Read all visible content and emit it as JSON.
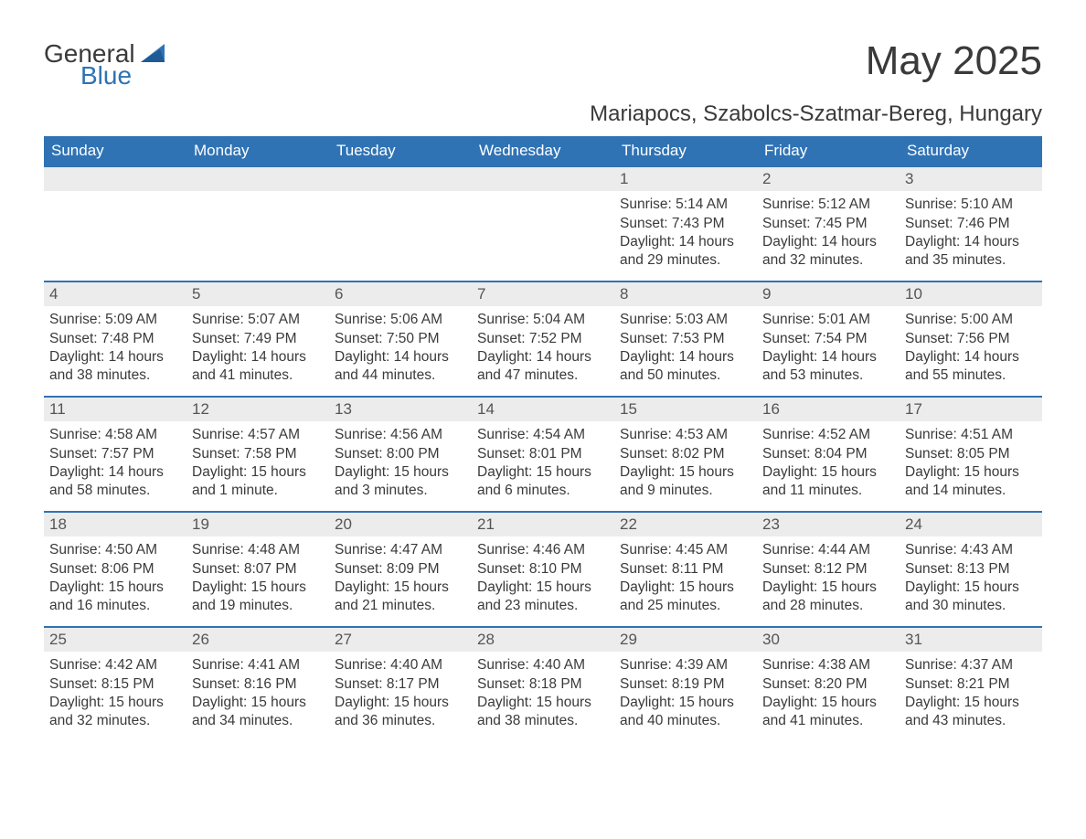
{
  "brand": {
    "word1": "General",
    "word2": "Blue"
  },
  "title": "May 2025",
  "location": "Mariapocs, Szabolcs-Szatmar-Bereg, Hungary",
  "colors": {
    "header_bg": "#2f73b5",
    "header_text": "#ffffff",
    "row_rule": "#2f73b5",
    "daybar_bg": "#ececec",
    "daybar_text": "#555555",
    "body_text": "#3a3a3a",
    "logo_blue": "#2f73b5",
    "page_bg": "#ffffff"
  },
  "layout": {
    "columns": 7,
    "rows": 5,
    "leading_blanks": 4
  },
  "weekdays": [
    "Sunday",
    "Monday",
    "Tuesday",
    "Wednesday",
    "Thursday",
    "Friday",
    "Saturday"
  ],
  "days": [
    {
      "n": 1,
      "sunrise": "5:14 AM",
      "sunset": "7:43 PM",
      "daylight": "14 hours and 29 minutes."
    },
    {
      "n": 2,
      "sunrise": "5:12 AM",
      "sunset": "7:45 PM",
      "daylight": "14 hours and 32 minutes."
    },
    {
      "n": 3,
      "sunrise": "5:10 AM",
      "sunset": "7:46 PM",
      "daylight": "14 hours and 35 minutes."
    },
    {
      "n": 4,
      "sunrise": "5:09 AM",
      "sunset": "7:48 PM",
      "daylight": "14 hours and 38 minutes."
    },
    {
      "n": 5,
      "sunrise": "5:07 AM",
      "sunset": "7:49 PM",
      "daylight": "14 hours and 41 minutes."
    },
    {
      "n": 6,
      "sunrise": "5:06 AM",
      "sunset": "7:50 PM",
      "daylight": "14 hours and 44 minutes."
    },
    {
      "n": 7,
      "sunrise": "5:04 AM",
      "sunset": "7:52 PM",
      "daylight": "14 hours and 47 minutes."
    },
    {
      "n": 8,
      "sunrise": "5:03 AM",
      "sunset": "7:53 PM",
      "daylight": "14 hours and 50 minutes."
    },
    {
      "n": 9,
      "sunrise": "5:01 AM",
      "sunset": "7:54 PM",
      "daylight": "14 hours and 53 minutes."
    },
    {
      "n": 10,
      "sunrise": "5:00 AM",
      "sunset": "7:56 PM",
      "daylight": "14 hours and 55 minutes."
    },
    {
      "n": 11,
      "sunrise": "4:58 AM",
      "sunset": "7:57 PM",
      "daylight": "14 hours and 58 minutes."
    },
    {
      "n": 12,
      "sunrise": "4:57 AM",
      "sunset": "7:58 PM",
      "daylight": "15 hours and 1 minute."
    },
    {
      "n": 13,
      "sunrise": "4:56 AM",
      "sunset": "8:00 PM",
      "daylight": "15 hours and 3 minutes."
    },
    {
      "n": 14,
      "sunrise": "4:54 AM",
      "sunset": "8:01 PM",
      "daylight": "15 hours and 6 minutes."
    },
    {
      "n": 15,
      "sunrise": "4:53 AM",
      "sunset": "8:02 PM",
      "daylight": "15 hours and 9 minutes."
    },
    {
      "n": 16,
      "sunrise": "4:52 AM",
      "sunset": "8:04 PM",
      "daylight": "15 hours and 11 minutes."
    },
    {
      "n": 17,
      "sunrise": "4:51 AM",
      "sunset": "8:05 PM",
      "daylight": "15 hours and 14 minutes."
    },
    {
      "n": 18,
      "sunrise": "4:50 AM",
      "sunset": "8:06 PM",
      "daylight": "15 hours and 16 minutes."
    },
    {
      "n": 19,
      "sunrise": "4:48 AM",
      "sunset": "8:07 PM",
      "daylight": "15 hours and 19 minutes."
    },
    {
      "n": 20,
      "sunrise": "4:47 AM",
      "sunset": "8:09 PM",
      "daylight": "15 hours and 21 minutes."
    },
    {
      "n": 21,
      "sunrise": "4:46 AM",
      "sunset": "8:10 PM",
      "daylight": "15 hours and 23 minutes."
    },
    {
      "n": 22,
      "sunrise": "4:45 AM",
      "sunset": "8:11 PM",
      "daylight": "15 hours and 25 minutes."
    },
    {
      "n": 23,
      "sunrise": "4:44 AM",
      "sunset": "8:12 PM",
      "daylight": "15 hours and 28 minutes."
    },
    {
      "n": 24,
      "sunrise": "4:43 AM",
      "sunset": "8:13 PM",
      "daylight": "15 hours and 30 minutes."
    },
    {
      "n": 25,
      "sunrise": "4:42 AM",
      "sunset": "8:15 PM",
      "daylight": "15 hours and 32 minutes."
    },
    {
      "n": 26,
      "sunrise": "4:41 AM",
      "sunset": "8:16 PM",
      "daylight": "15 hours and 34 minutes."
    },
    {
      "n": 27,
      "sunrise": "4:40 AM",
      "sunset": "8:17 PM",
      "daylight": "15 hours and 36 minutes."
    },
    {
      "n": 28,
      "sunrise": "4:40 AM",
      "sunset": "8:18 PM",
      "daylight": "15 hours and 38 minutes."
    },
    {
      "n": 29,
      "sunrise": "4:39 AM",
      "sunset": "8:19 PM",
      "daylight": "15 hours and 40 minutes."
    },
    {
      "n": 30,
      "sunrise": "4:38 AM",
      "sunset": "8:20 PM",
      "daylight": "15 hours and 41 minutes."
    },
    {
      "n": 31,
      "sunrise": "4:37 AM",
      "sunset": "8:21 PM",
      "daylight": "15 hours and 43 minutes."
    }
  ],
  "labels": {
    "sunrise": "Sunrise: ",
    "sunset": "Sunset: ",
    "daylight": "Daylight: "
  }
}
